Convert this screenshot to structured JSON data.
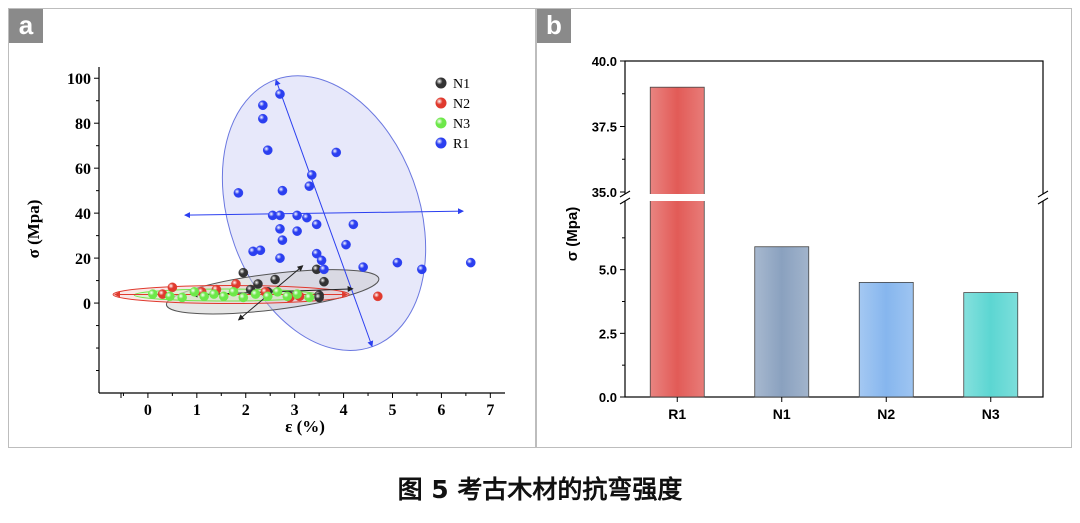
{
  "panel_a": {
    "tag": "a"
  },
  "panel_b": {
    "tag": "b"
  },
  "caption": "图 5  考古木材的抗弯强度",
  "colors": {
    "N1": "#333333",
    "N2": "#e03a2e",
    "N3": "#6ee84a",
    "R1": "#2b3ff0",
    "bar_R1": "#e25b57",
    "bar_N1": "#8aa1bf",
    "bar_N2": "#86b6ee",
    "bar_N3": "#5cd6d2"
  },
  "chart_data": [
    {
      "type": "scatter",
      "xlabel": "ε (%)",
      "ylabel": "σ (Mpa)",
      "xlim": [
        -1,
        7.3
      ],
      "ylim": [
        -40,
        105
      ],
      "xticks": [
        "0",
        "1",
        "2",
        "3",
        "4",
        "5",
        "6",
        "7"
      ],
      "yticks": [
        "0",
        "20",
        "40",
        "60",
        "80",
        "100"
      ],
      "legend": "top-right",
      "series": [
        {
          "name": "N1",
          "points": [
            [
              1.95,
              13.5
            ],
            [
              2.25,
              8.5
            ],
            [
              2.6,
              10.5
            ],
            [
              3.45,
              15
            ],
            [
              3.5,
              3.5
            ],
            [
              3.6,
              9.5
            ],
            [
              3.5,
              2.5
            ],
            [
              2.9,
              3
            ],
            [
              2.1,
              6
            ],
            [
              2.45,
              5
            ]
          ]
        },
        {
          "name": "N2",
          "points": [
            [
              0.3,
              4
            ],
            [
              0.5,
              7
            ],
            [
              1.1,
              5
            ],
            [
              1.4,
              6
            ],
            [
              1.8,
              8.5
            ],
            [
              2.4,
              5
            ],
            [
              2.9,
              2.5
            ],
            [
              3.1,
              3
            ],
            [
              4.7,
              3
            ]
          ]
        },
        {
          "name": "N3",
          "points": [
            [
              0.1,
              4
            ],
            [
              0.45,
              3
            ],
            [
              0.7,
              2.5
            ],
            [
              0.95,
              5
            ],
            [
              1.15,
              3
            ],
            [
              1.35,
              4
            ],
            [
              1.55,
              3
            ],
            [
              1.75,
              5
            ],
            [
              1.95,
              2.5
            ],
            [
              2.2,
              4
            ],
            [
              2.45,
              3
            ],
            [
              2.65,
              5
            ],
            [
              2.85,
              3
            ],
            [
              3.05,
              4
            ],
            [
              3.3,
              2.5
            ]
          ]
        },
        {
          "name": "R1",
          "points": [
            [
              2.35,
              88
            ],
            [
              2.7,
              93
            ],
            [
              2.35,
              82
            ],
            [
              2.45,
              68
            ],
            [
              3.85,
              67
            ],
            [
              1.85,
              49
            ],
            [
              2.75,
              50
            ],
            [
              3.35,
              57
            ],
            [
              3.3,
              52
            ],
            [
              2.55,
              39
            ],
            [
              2.7,
              39
            ],
            [
              3.05,
              39
            ],
            [
              3.25,
              38
            ],
            [
              3.45,
              35
            ],
            [
              3.05,
              32
            ],
            [
              2.7,
              33
            ],
            [
              2.75,
              28
            ],
            [
              4.2,
              35
            ],
            [
              4.05,
              26
            ],
            [
              2.15,
              23
            ],
            [
              2.3,
              23.5
            ],
            [
              2.7,
              20
            ],
            [
              3.45,
              22
            ],
            [
              3.55,
              19
            ],
            [
              3.6,
              15
            ],
            [
              4.4,
              16
            ],
            [
              5.1,
              18
            ],
            [
              5.6,
              15
            ],
            [
              6.6,
              18
            ]
          ]
        }
      ]
    },
    {
      "type": "bar",
      "ylabel": "σ (Mpa)",
      "categories": [
        "R1",
        "N1",
        "N2",
        "N3"
      ],
      "values": [
        39.0,
        5.9,
        4.5,
        4.1
      ],
      "axis_break": [
        7.5,
        35.0
      ],
      "yticks_lower": [
        "0.0",
        "2.5",
        "5.0"
      ],
      "yticks_upper": [
        "35.0",
        "37.5",
        "40.0"
      ]
    }
  ]
}
